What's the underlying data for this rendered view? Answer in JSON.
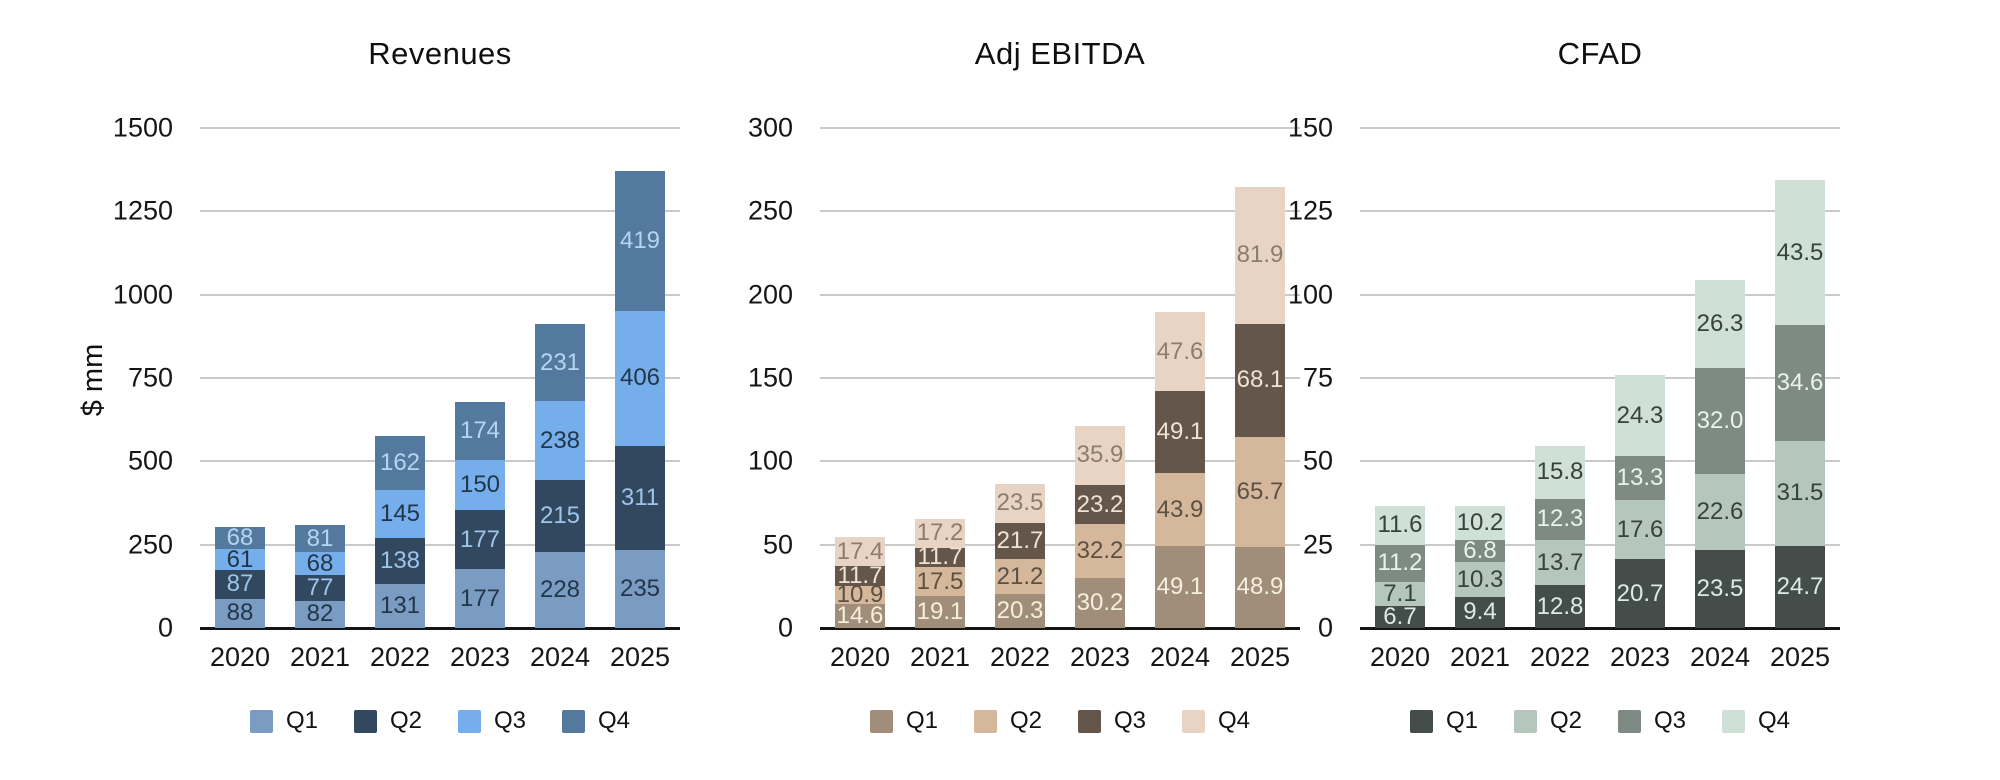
{
  "ylabel": "$ mm",
  "years": [
    "2020",
    "2021",
    "2022",
    "2023",
    "2024",
    "2025"
  ],
  "quarters": [
    "Q1",
    "Q2",
    "Q3",
    "Q4"
  ],
  "style": {
    "background": "#ffffff",
    "gridline_color": "#c9c9c8",
    "axis_color": "#141414",
    "text_color": "#121212"
  },
  "chart_data": [
    {
      "type": "bar",
      "subtype": "stacked",
      "title": "Revenues",
      "ylabel": "$ mm",
      "ylim": [
        0,
        1500
      ],
      "yticks": [
        0,
        250,
        500,
        750,
        1000,
        1250,
        1500
      ],
      "categories": [
        "2020",
        "2021",
        "2022",
        "2023",
        "2024",
        "2025"
      ],
      "value_decimals": 0,
      "grid": true,
      "legend_position": "bottom",
      "series": [
        {
          "name": "Q1",
          "color": "#7b9cc2",
          "label_color": "#22364a",
          "values": [
            88,
            82,
            131,
            177,
            228,
            235
          ]
        },
        {
          "name": "Q2",
          "color": "#31485e",
          "label_color": "#9fc4ea",
          "values": [
            87,
            77,
            138,
            177,
            215,
            311
          ]
        },
        {
          "name": "Q3",
          "color": "#75aeea",
          "label_color": "#22364a",
          "values": [
            61,
            68,
            145,
            150,
            238,
            406
          ]
        },
        {
          "name": "Q4",
          "color": "#54799f",
          "label_color": "#b5d4f2",
          "values": [
            68,
            81,
            162,
            174,
            231,
            419
          ]
        }
      ]
    },
    {
      "type": "bar",
      "subtype": "stacked",
      "title": "Adj EBITDA",
      "ylim": [
        0,
        300
      ],
      "yticks": [
        0,
        50,
        100,
        150,
        200,
        250,
        300
      ],
      "categories": [
        "2020",
        "2021",
        "2022",
        "2023",
        "2024",
        "2025"
      ],
      "value_decimals": 1,
      "grid": true,
      "legend_position": "bottom",
      "series": [
        {
          "name": "Q1",
          "color": "#a18e7a",
          "label_color": "#f6eedd",
          "values": [
            14.6,
            19.1,
            20.3,
            30.2,
            49.1,
            48.9
          ]
        },
        {
          "name": "Q2",
          "color": "#d5b79b",
          "label_color": "#5d5044",
          "values": [
            10.9,
            17.5,
            21.2,
            32.2,
            43.9,
            65.7
          ]
        },
        {
          "name": "Q3",
          "color": "#64564b",
          "label_color": "#f0e3d3",
          "values": [
            11.7,
            11.7,
            21.7,
            23.2,
            49.1,
            68.1
          ]
        },
        {
          "name": "Q4",
          "color": "#e8d4c5",
          "label_color": "#8d7d6e",
          "values": [
            17.4,
            17.2,
            23.5,
            35.9,
            47.6,
            81.9
          ]
        }
      ]
    },
    {
      "type": "bar",
      "subtype": "stacked",
      "title": "CFAD",
      "ylim": [
        0,
        150
      ],
      "yticks": [
        0,
        25,
        50,
        75,
        100,
        125,
        150
      ],
      "categories": [
        "2020",
        "2021",
        "2022",
        "2023",
        "2024",
        "2025"
      ],
      "value_decimals": 1,
      "grid": true,
      "legend_position": "bottom",
      "series": [
        {
          "name": "Q1",
          "color": "#454d4a",
          "label_color": "#ddeae1",
          "values": [
            6.7,
            9.4,
            12.8,
            20.7,
            23.5,
            24.7
          ]
        },
        {
          "name": "Q2",
          "color": "#b5c6bd",
          "label_color": "#37413d",
          "values": [
            7.1,
            10.3,
            13.7,
            17.6,
            22.6,
            31.5
          ]
        },
        {
          "name": "Q3",
          "color": "#7e8a84",
          "label_color": "#e9f3ed",
          "values": [
            11.2,
            6.8,
            12.3,
            13.3,
            32.0,
            34.6
          ]
        },
        {
          "name": "Q4",
          "color": "#cfe0d7",
          "label_color": "#37413d",
          "values": [
            11.6,
            10.2,
            15.8,
            24.3,
            26.3,
            43.5
          ]
        }
      ]
    }
  ]
}
